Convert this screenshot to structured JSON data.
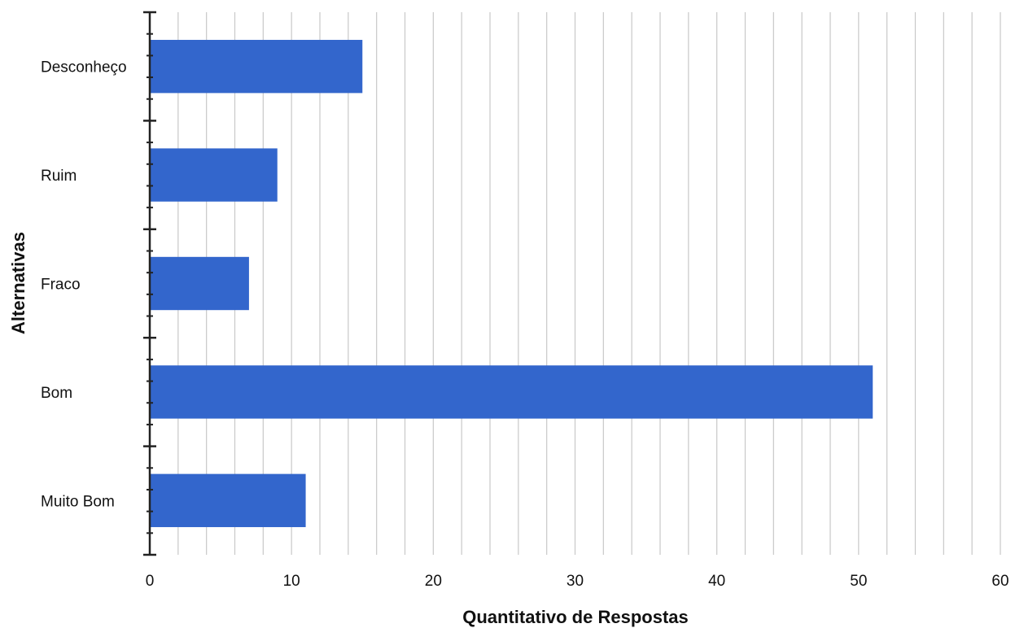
{
  "chart_data": {
    "type": "bar",
    "orientation": "horizontal",
    "categories": [
      "Desconheço",
      "Ruim",
      "Fraco",
      "Bom",
      "Muito Bom"
    ],
    "values": [
      15,
      9,
      7,
      51,
      11
    ],
    "xlabel": "Quantitativo de Respostas",
    "ylabel": "Alternativas",
    "xlim": [
      0,
      60
    ],
    "xticks": [
      0,
      10,
      20,
      30,
      40,
      50,
      60
    ],
    "minor_gridline_step": 2,
    "grid": "vertical",
    "bar_color": "#3366cc",
    "grid_color": "#c8c8c8",
    "axis_color": "#222222"
  }
}
